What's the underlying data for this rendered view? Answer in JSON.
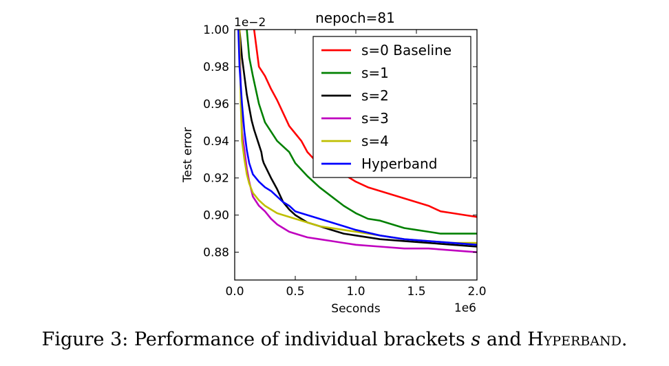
{
  "chart_data": {
    "type": "line",
    "title": "nepoch=81",
    "xlabel": "Seconds",
    "ylabel": "Test error",
    "x_multiplier_label": "1e6",
    "y_multiplier_label": "1e−2",
    "xlim": [
      0.0,
      2.0
    ],
    "ylim": [
      0.865,
      1.0
    ],
    "x_ticks": [
      "0.0",
      "0.5",
      "1.0",
      "1.5",
      "2.0"
    ],
    "y_ticks": [
      "0.88",
      "0.90",
      "0.92",
      "0.94",
      "0.96",
      "0.98",
      "1.00"
    ],
    "legend_position": "top-right",
    "series": [
      {
        "name": "s=0 Baseline",
        "color": "#ff0000",
        "points": [
          [
            0.16,
            1.0
          ],
          [
            0.2,
            0.98
          ],
          [
            0.25,
            0.975
          ],
          [
            0.3,
            0.968
          ],
          [
            0.35,
            0.962
          ],
          [
            0.4,
            0.955
          ],
          [
            0.45,
            0.948
          ],
          [
            0.5,
            0.944
          ],
          [
            0.55,
            0.94
          ],
          [
            0.6,
            0.934
          ],
          [
            0.7,
            0.927
          ],
          [
            0.8,
            0.924
          ],
          [
            0.9,
            0.922
          ],
          [
            1.0,
            0.918
          ],
          [
            1.1,
            0.915
          ],
          [
            1.2,
            0.913
          ],
          [
            1.3,
            0.911
          ],
          [
            1.4,
            0.909
          ],
          [
            1.5,
            0.907
          ],
          [
            1.6,
            0.905
          ],
          [
            1.7,
            0.902
          ],
          [
            1.8,
            0.901
          ],
          [
            1.9,
            0.9
          ],
          [
            2.0,
            0.899
          ]
        ]
      },
      {
        "name": "s=1",
        "color": "#008000",
        "points": [
          [
            0.1,
            1.0
          ],
          [
            0.12,
            0.985
          ],
          [
            0.15,
            0.975
          ],
          [
            0.2,
            0.96
          ],
          [
            0.25,
            0.95
          ],
          [
            0.3,
            0.945
          ],
          [
            0.35,
            0.94
          ],
          [
            0.4,
            0.937
          ],
          [
            0.45,
            0.934
          ],
          [
            0.5,
            0.928
          ],
          [
            0.6,
            0.921
          ],
          [
            0.7,
            0.915
          ],
          [
            0.8,
            0.91
          ],
          [
            0.9,
            0.905
          ],
          [
            1.0,
            0.901
          ],
          [
            1.1,
            0.898
          ],
          [
            1.2,
            0.897
          ],
          [
            1.3,
            0.895
          ],
          [
            1.4,
            0.893
          ],
          [
            1.5,
            0.892
          ],
          [
            1.6,
            0.891
          ],
          [
            1.7,
            0.89
          ],
          [
            1.8,
            0.89
          ],
          [
            2.0,
            0.89
          ]
        ]
      },
      {
        "name": "s=2",
        "color": "#000000",
        "points": [
          [
            0.04,
            1.0
          ],
          [
            0.06,
            0.985
          ],
          [
            0.08,
            0.975
          ],
          [
            0.1,
            0.965
          ],
          [
            0.12,
            0.958
          ],
          [
            0.14,
            0.951
          ],
          [
            0.16,
            0.946
          ],
          [
            0.18,
            0.942
          ],
          [
            0.2,
            0.938
          ],
          [
            0.22,
            0.934
          ],
          [
            0.23,
            0.93
          ],
          [
            0.24,
            0.928
          ],
          [
            0.3,
            0.92
          ],
          [
            0.35,
            0.914
          ],
          [
            0.4,
            0.907
          ],
          [
            0.45,
            0.903
          ],
          [
            0.5,
            0.9
          ],
          [
            0.6,
            0.896
          ],
          [
            0.7,
            0.894
          ],
          [
            0.8,
            0.892
          ],
          [
            0.9,
            0.89
          ],
          [
            1.0,
            0.889
          ],
          [
            1.2,
            0.887
          ],
          [
            1.4,
            0.886
          ],
          [
            1.6,
            0.885
          ],
          [
            1.8,
            0.884
          ],
          [
            2.0,
            0.883
          ]
        ]
      },
      {
        "name": "s=3",
        "color": "#bf00bf",
        "points": [
          [
            0.04,
            1.0
          ],
          [
            0.05,
            0.97
          ],
          [
            0.06,
            0.945
          ],
          [
            0.08,
            0.935
          ],
          [
            0.1,
            0.925
          ],
          [
            0.12,
            0.918
          ],
          [
            0.15,
            0.91
          ],
          [
            0.2,
            0.905
          ],
          [
            0.25,
            0.902
          ],
          [
            0.3,
            0.898
          ],
          [
            0.35,
            0.895
          ],
          [
            0.4,
            0.893
          ],
          [
            0.45,
            0.891
          ],
          [
            0.5,
            0.89
          ],
          [
            0.6,
            0.888
          ],
          [
            0.7,
            0.887
          ],
          [
            0.8,
            0.886
          ],
          [
            0.9,
            0.885
          ],
          [
            1.0,
            0.884
          ],
          [
            1.2,
            0.883
          ],
          [
            1.4,
            0.882
          ],
          [
            1.6,
            0.882
          ],
          [
            1.8,
            0.881
          ],
          [
            2.0,
            0.88
          ]
        ]
      },
      {
        "name": "s=4",
        "color": "#bfbf00",
        "points": [
          [
            0.04,
            1.0
          ],
          [
            0.05,
            0.96
          ],
          [
            0.06,
            0.94
          ],
          [
            0.08,
            0.93
          ],
          [
            0.1,
            0.922
          ],
          [
            0.12,
            0.917
          ],
          [
            0.15,
            0.912
          ],
          [
            0.2,
            0.908
          ],
          [
            0.25,
            0.905
          ],
          [
            0.3,
            0.903
          ],
          [
            0.35,
            0.901
          ],
          [
            0.4,
            0.9
          ],
          [
            0.5,
            0.898
          ],
          [
            0.6,
            0.896
          ],
          [
            0.7,
            0.894
          ],
          [
            0.8,
            0.893
          ],
          [
            0.9,
            0.892
          ],
          [
            1.0,
            0.891
          ],
          [
            1.2,
            0.889
          ],
          [
            1.4,
            0.887
          ],
          [
            1.6,
            0.886
          ],
          [
            1.8,
            0.885
          ],
          [
            2.0,
            0.885
          ]
        ]
      },
      {
        "name": "Hyperband",
        "color": "#0000ff",
        "points": [
          [
            0.03,
            1.0
          ],
          [
            0.04,
            0.98
          ],
          [
            0.05,
            0.97
          ],
          [
            0.06,
            0.96
          ],
          [
            0.08,
            0.945
          ],
          [
            0.1,
            0.935
          ],
          [
            0.12,
            0.928
          ],
          [
            0.15,
            0.922
          ],
          [
            0.2,
            0.918
          ],
          [
            0.25,
            0.915
          ],
          [
            0.3,
            0.913
          ],
          [
            0.35,
            0.91
          ],
          [
            0.4,
            0.907
          ],
          [
            0.45,
            0.905
          ],
          [
            0.5,
            0.902
          ],
          [
            0.6,
            0.9
          ],
          [
            0.7,
            0.898
          ],
          [
            0.8,
            0.896
          ],
          [
            0.9,
            0.894
          ],
          [
            1.0,
            0.892
          ],
          [
            1.2,
            0.889
          ],
          [
            1.4,
            0.887
          ],
          [
            1.6,
            0.886
          ],
          [
            1.8,
            0.885
          ],
          [
            2.0,
            0.884
          ]
        ]
      }
    ]
  },
  "caption": {
    "prefix": "Figure 3: Performance of individual brackets ",
    "var": "s",
    "middle": " and ",
    "name": "Hyperband",
    "suffix": "."
  }
}
